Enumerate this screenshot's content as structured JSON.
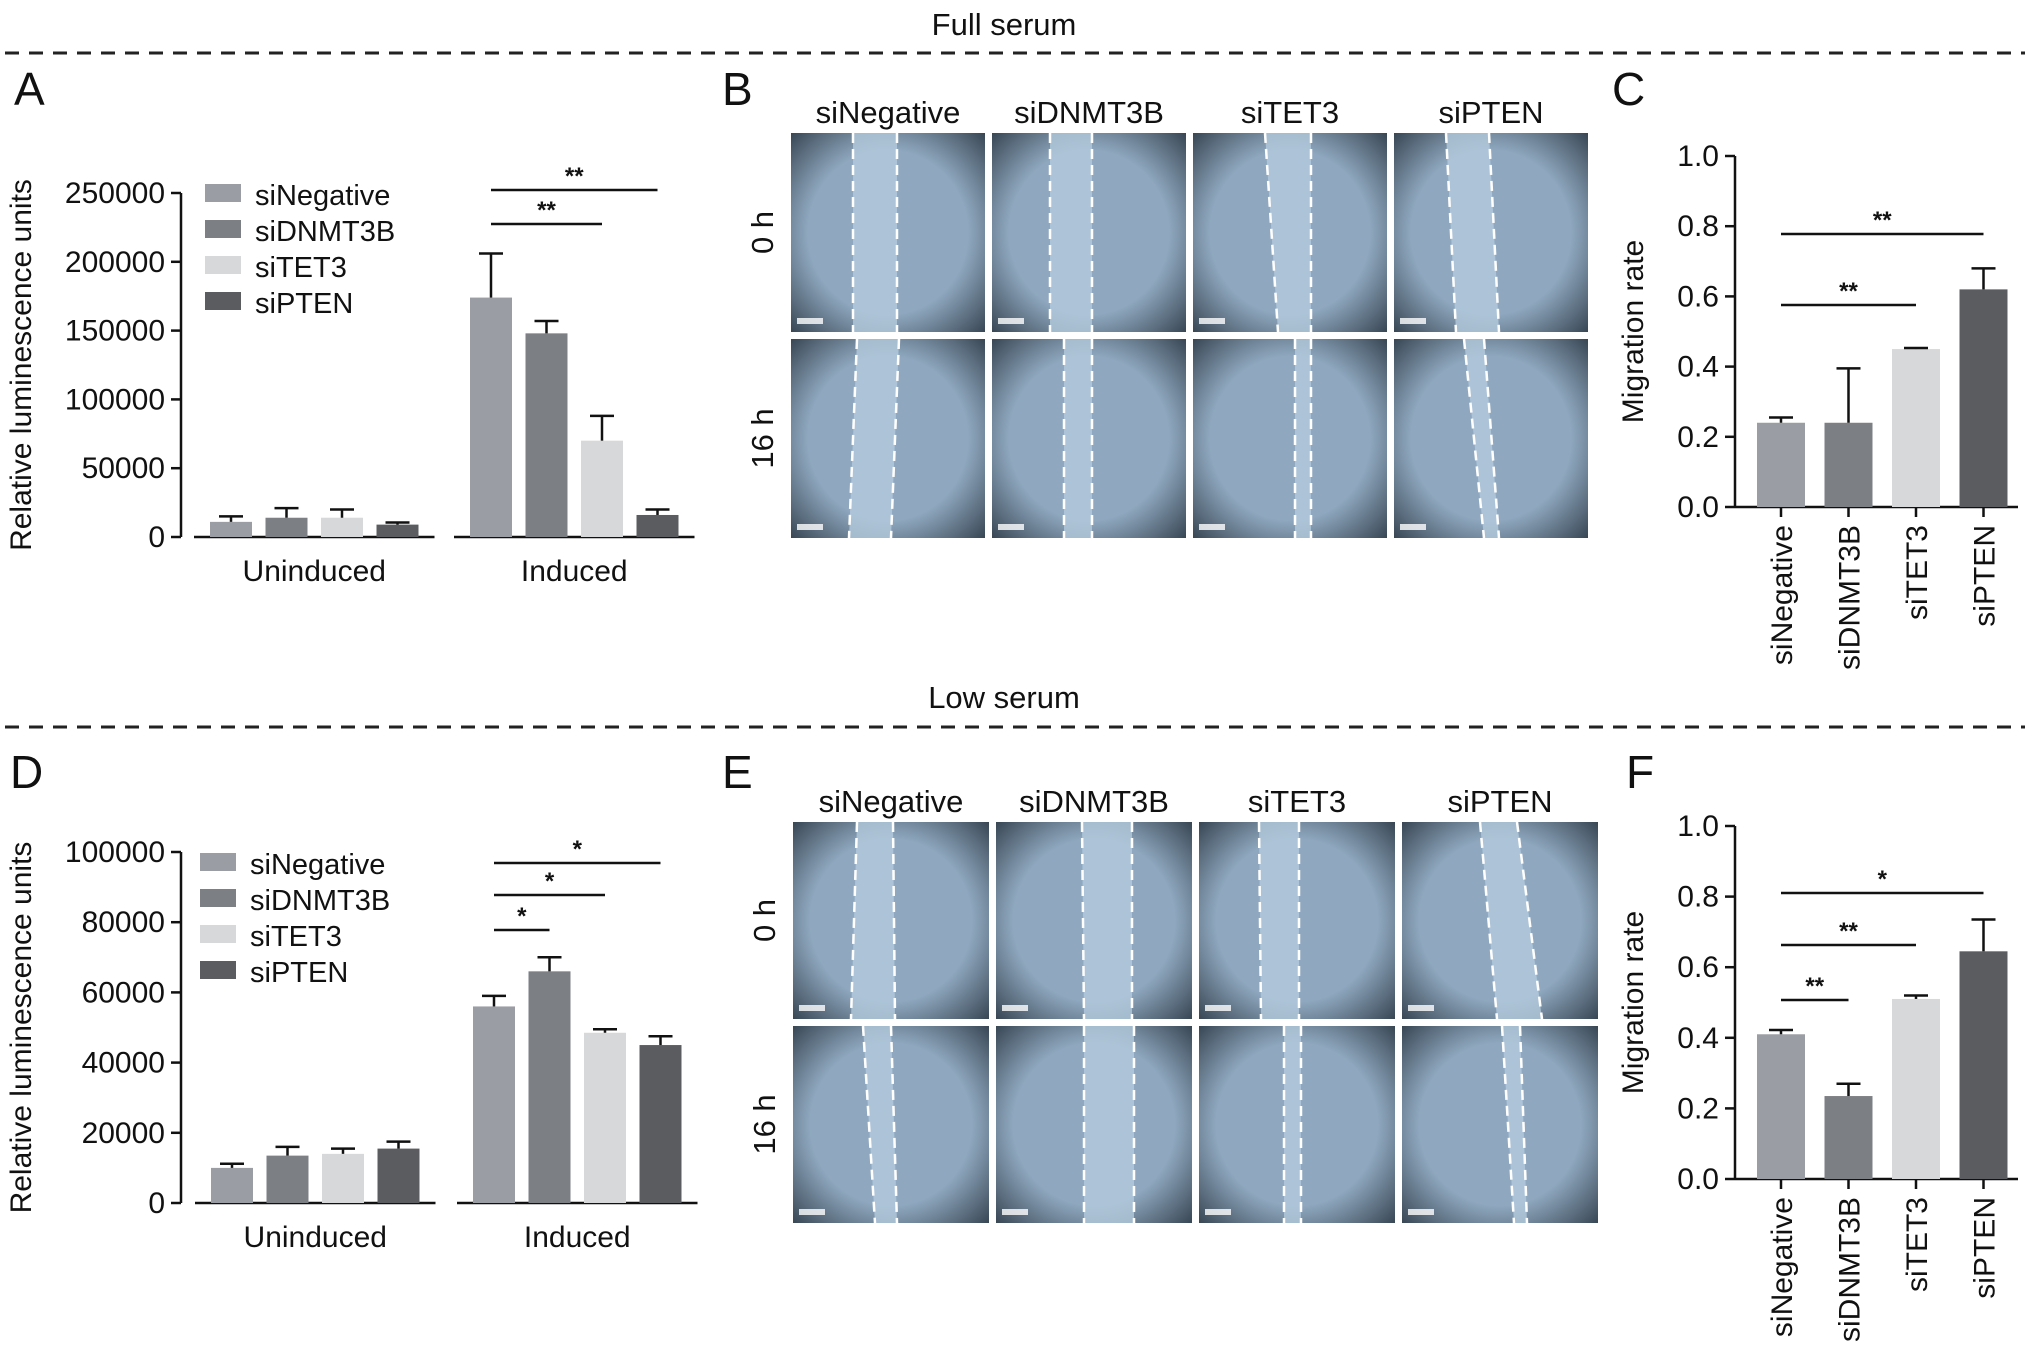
{
  "sections": [
    {
      "title": "Full serum"
    },
    {
      "title": "Low serum"
    }
  ],
  "microscopy": {
    "columns": [
      "siNegative",
      "siDNMT3B",
      "siTET3",
      "siPTEN"
    ],
    "rows": [
      "0 h",
      "16 h"
    ]
  },
  "colors": {
    "siNegative": "#9a9da3",
    "siDNMT3B": "#7c7f84",
    "siTET3": "#d6d8da",
    "siPTEN": "#5a5c60",
    "image_fill": "#9eb4c8",
    "wound_fill": "#b7cde0"
  },
  "chart_data": [
    {
      "panel": "A",
      "type": "bar",
      "categories": [
        "Uninduced",
        "Induced"
      ],
      "series": [
        {
          "name": "siNegative",
          "values": [
            11000,
            174000
          ],
          "errors": [
            4000,
            32000
          ]
        },
        {
          "name": "siDNMT3B",
          "values": [
            14000,
            148000
          ],
          "errors": [
            7000,
            9000
          ]
        },
        {
          "name": "siTET3",
          "values": [
            14000,
            70000
          ],
          "errors": [
            6000,
            18000
          ]
        },
        {
          "name": "siPTEN",
          "values": [
            9000,
            16000
          ],
          "errors": [
            1500,
            4000
          ]
        }
      ],
      "ylabel": "Relative luminescence units",
      "ylim": [
        0,
        250000
      ],
      "yticks": [
        "0",
        "50000",
        "100000",
        "150000",
        "200000",
        "250000"
      ],
      "legend": "top-left",
      "significance": [
        {
          "group": 1,
          "from": 0,
          "to": 3,
          "label": "**"
        },
        {
          "group": 1,
          "from": 0,
          "to": 2,
          "label": "**"
        }
      ]
    },
    {
      "panel": "C",
      "type": "bar",
      "categories": [
        "siNegative",
        "siDNMT3B",
        "siTET3",
        "siPTEN"
      ],
      "values": [
        0.24,
        0.24,
        0.45,
        0.62
      ],
      "errors": [
        0.015,
        0.155,
        0.003,
        0.06
      ],
      "ylabel": "Migration rate",
      "ylim": [
        0,
        1.0
      ],
      "yticks": [
        "0.0",
        "0.2",
        "0.4",
        "0.6",
        "0.8",
        "1.0"
      ],
      "significance": [
        {
          "from": 0,
          "to": 3,
          "label": "**"
        },
        {
          "from": 0,
          "to": 2,
          "label": "**"
        }
      ]
    },
    {
      "panel": "D",
      "type": "bar",
      "categories": [
        "Uninduced",
        "Induced"
      ],
      "series": [
        {
          "name": "siNegative",
          "values": [
            10000,
            56000
          ],
          "errors": [
            1200,
            3000
          ]
        },
        {
          "name": "siDNMT3B",
          "values": [
            13500,
            66000
          ],
          "errors": [
            2500,
            4000
          ]
        },
        {
          "name": "siTET3",
          "values": [
            14000,
            48500
          ],
          "errors": [
            1500,
            1000
          ]
        },
        {
          "name": "siPTEN",
          "values": [
            15500,
            45000
          ],
          "errors": [
            2000,
            2500
          ]
        }
      ],
      "ylabel": "Relative luminescence units",
      "ylim": [
        0,
        100000
      ],
      "yticks": [
        "0",
        "20000",
        "40000",
        "60000",
        "80000",
        "100000"
      ],
      "legend": "top-left",
      "significance": [
        {
          "group": 1,
          "from": 0,
          "to": 3,
          "label": "*"
        },
        {
          "group": 1,
          "from": 0,
          "to": 2,
          "label": "*"
        },
        {
          "group": 1,
          "from": 0,
          "to": 1,
          "label": "*"
        }
      ]
    },
    {
      "panel": "F",
      "type": "bar",
      "categories": [
        "siNegative",
        "siDNMT3B",
        "siTET3",
        "siPTEN"
      ],
      "values": [
        0.41,
        0.235,
        0.51,
        0.645
      ],
      "errors": [
        0.012,
        0.035,
        0.01,
        0.09
      ],
      "ylabel": "Migration rate",
      "ylim": [
        0,
        1.0
      ],
      "yticks": [
        "0.0",
        "0.2",
        "0.4",
        "0.6",
        "0.8",
        "1.0"
      ],
      "significance": [
        {
          "from": 0,
          "to": 3,
          "label": "*"
        },
        {
          "from": 0,
          "to": 2,
          "label": "**"
        },
        {
          "from": 0,
          "to": 1,
          "label": "**"
        }
      ]
    }
  ]
}
